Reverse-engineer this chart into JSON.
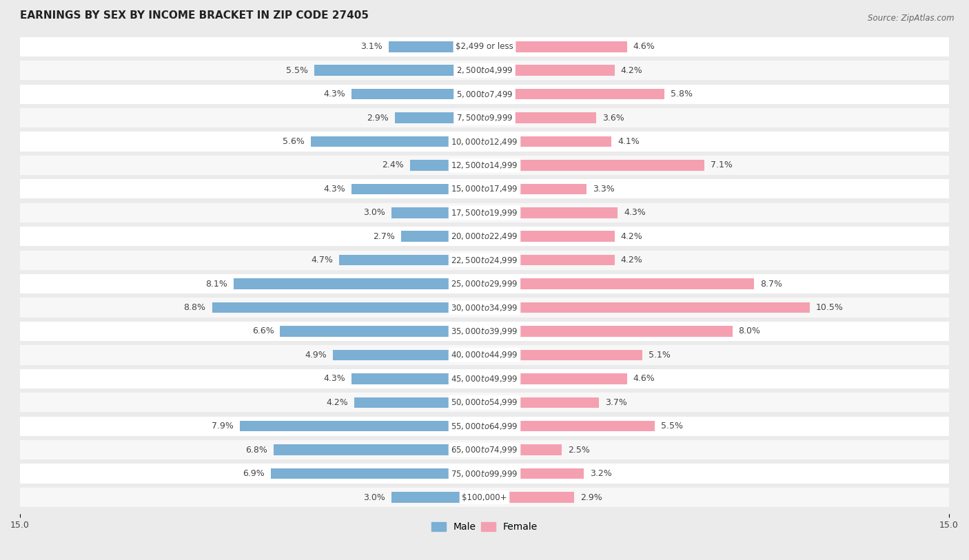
{
  "title": "EARNINGS BY SEX BY INCOME BRACKET IN ZIP CODE 27405",
  "source": "Source: ZipAtlas.com",
  "categories": [
    "$2,499 or less",
    "$2,500 to $4,999",
    "$5,000 to $7,499",
    "$7,500 to $9,999",
    "$10,000 to $12,499",
    "$12,500 to $14,999",
    "$15,000 to $17,499",
    "$17,500 to $19,999",
    "$20,000 to $22,499",
    "$22,500 to $24,999",
    "$25,000 to $29,999",
    "$30,000 to $34,999",
    "$35,000 to $39,999",
    "$40,000 to $44,999",
    "$45,000 to $49,999",
    "$50,000 to $54,999",
    "$55,000 to $64,999",
    "$65,000 to $74,999",
    "$75,000 to $99,999",
    "$100,000+"
  ],
  "male_values": [
    3.1,
    5.5,
    4.3,
    2.9,
    5.6,
    2.4,
    4.3,
    3.0,
    2.7,
    4.7,
    8.1,
    8.8,
    6.6,
    4.9,
    4.3,
    4.2,
    7.9,
    6.8,
    6.9,
    3.0
  ],
  "female_values": [
    4.6,
    4.2,
    5.8,
    3.6,
    4.1,
    7.1,
    3.3,
    4.3,
    4.2,
    4.2,
    8.7,
    10.5,
    8.0,
    5.1,
    4.6,
    3.7,
    5.5,
    2.5,
    3.2,
    2.9
  ],
  "male_color": "#7bafd4",
  "female_color": "#f4a0b0",
  "xlim": 15.0,
  "bg_color": "#ebebeb",
  "bar_bg_color": "#ffffff",
  "row_bg_odd": "#f7f7f7",
  "row_bg_even": "#ffffff",
  "title_fontsize": 11,
  "label_fontsize": 9,
  "cat_fontsize": 8.5,
  "tick_fontsize": 9,
  "source_fontsize": 8.5
}
